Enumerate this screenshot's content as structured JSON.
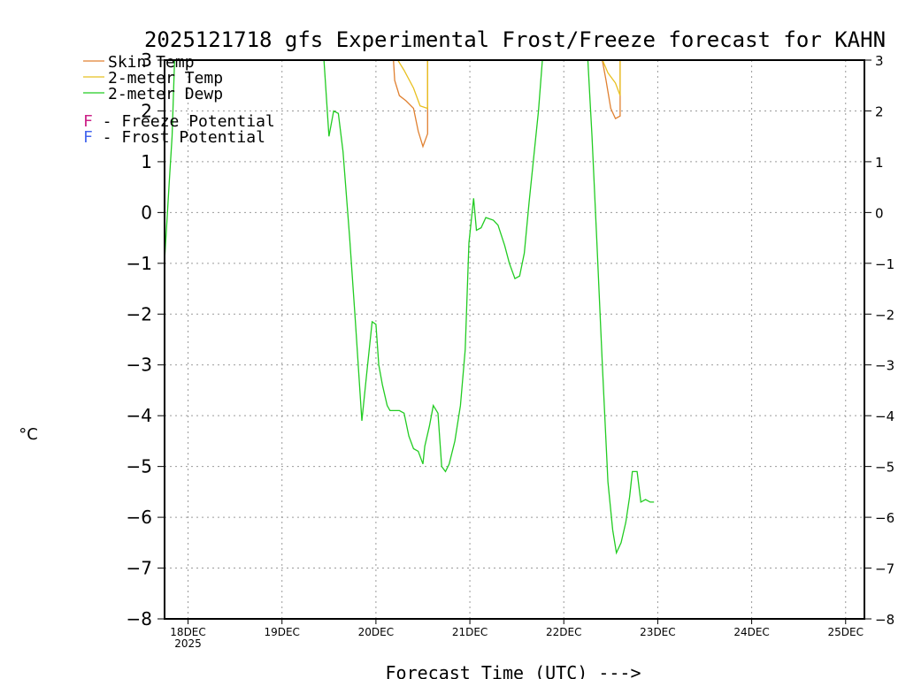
{
  "chart_data": {
    "type": "line",
    "title": "2025121718 gfs Experimental Frost/Freeze forecast for KAHN",
    "xlabel": "Forecast Time (UTC) --->",
    "ylabel": "°C",
    "ylim": [
      -8,
      3
    ],
    "xlim": [
      17.75,
      25.2
    ],
    "yticks": [
      -8,
      -7,
      -6,
      -5,
      -4,
      -3,
      -2,
      -1,
      0,
      1,
      2,
      3
    ],
    "ytick_labels": [
      "−8",
      "−7",
      "−6",
      "−5",
      "−4",
      "−3",
      "−2",
      "−1",
      "0",
      "1",
      "2",
      "3"
    ],
    "ytick_labels_right": [
      "−8",
      "−7",
      "−6",
      "−5",
      "−4",
      "−3",
      "−2",
      "−1",
      "0",
      "1",
      "2",
      "3"
    ],
    "xticks": [
      18,
      19,
      20,
      21,
      22,
      23,
      24,
      25
    ],
    "xtick_labels": [
      "18DEC",
      "19DEC",
      "20DEC",
      "21DEC",
      "22DEC",
      "23DEC",
      "24DEC",
      "25DEC"
    ],
    "xtick_sublabel": "2025",
    "grid": true,
    "legend": {
      "placement": "top-left",
      "entries": [
        "Skin Temp",
        "2-meter Temp",
        "2-meter Dewp"
      ],
      "notes": [
        {
          "letter": "F",
          "text": " - Freeze Potential",
          "color": "#cc2288"
        },
        {
          "letter": "F",
          "text": " - Frost Potential",
          "color": "#4466ee"
        }
      ]
    },
    "series": [
      {
        "name": "Skin Temp",
        "color": "#e08030",
        "points": [
          [
            20.18,
            3.2
          ],
          [
            20.2,
            2.6
          ],
          [
            20.25,
            2.3
          ],
          [
            20.32,
            2.2
          ],
          [
            20.4,
            2.05
          ],
          [
            20.45,
            1.6
          ],
          [
            20.5,
            1.3
          ],
          [
            20.55,
            1.55
          ],
          [
            20.55,
            2.25
          ],
          [
            20.55,
            3.2
          ],
          null,
          [
            22.39,
            3.2
          ],
          [
            22.45,
            2.6
          ],
          [
            22.5,
            2.05
          ],
          [
            22.55,
            1.85
          ],
          [
            22.6,
            1.9
          ],
          [
            22.6,
            2.3
          ],
          [
            22.6,
            3.2
          ]
        ]
      },
      {
        "name": "2-meter Temp",
        "color": "#e8c020",
        "points": [
          [
            20.2,
            3.1
          ],
          [
            20.3,
            2.8
          ],
          [
            20.4,
            2.45
          ],
          [
            20.47,
            2.1
          ],
          [
            20.55,
            2.05
          ],
          [
            20.55,
            3.2
          ],
          null,
          [
            22.39,
            3.1
          ],
          [
            22.47,
            2.75
          ],
          [
            22.55,
            2.55
          ],
          [
            22.6,
            2.3
          ],
          [
            22.6,
            3.2
          ]
        ]
      },
      {
        "name": "2-meter Dewp",
        "color": "#22cc22",
        "points": [
          [
            17.75,
            -0.95
          ],
          [
            17.8,
            0.6
          ],
          [
            17.83,
            1.5
          ],
          [
            17.86,
            3.2
          ],
          null,
          [
            19.44,
            3.2
          ],
          [
            19.5,
            1.5
          ],
          [
            19.55,
            2.0
          ],
          [
            19.6,
            1.95
          ],
          [
            19.65,
            1.2
          ],
          [
            19.72,
            -0.5
          ],
          [
            19.78,
            -2.1
          ],
          [
            19.85,
            -4.1
          ],
          [
            19.9,
            -3.2
          ],
          [
            19.96,
            -2.15
          ],
          [
            20.0,
            -2.2
          ],
          [
            20.03,
            -3.0
          ],
          [
            20.07,
            -3.4
          ],
          [
            20.12,
            -3.8
          ],
          [
            20.15,
            -3.9
          ],
          [
            20.25,
            -3.9
          ],
          [
            20.3,
            -3.95
          ],
          [
            20.35,
            -4.4
          ],
          [
            20.4,
            -4.65
          ],
          [
            20.45,
            -4.7
          ],
          [
            20.5,
            -4.95
          ],
          [
            20.52,
            -4.6
          ],
          [
            20.57,
            -4.2
          ],
          [
            20.61,
            -3.8
          ],
          [
            20.66,
            -3.95
          ],
          [
            20.7,
            -5.0
          ],
          [
            20.74,
            -5.1
          ],
          [
            20.78,
            -4.95
          ],
          [
            20.84,
            -4.5
          ],
          [
            20.9,
            -3.8
          ],
          [
            20.95,
            -2.7
          ],
          [
            20.99,
            -0.6
          ],
          [
            21.04,
            0.28
          ],
          [
            21.07,
            -0.35
          ],
          [
            21.12,
            -0.3
          ],
          [
            21.17,
            -0.1
          ],
          [
            21.25,
            -0.15
          ],
          [
            21.3,
            -0.25
          ],
          [
            21.37,
            -0.65
          ],
          [
            21.42,
            -1.0
          ],
          [
            21.48,
            -1.3
          ],
          [
            21.53,
            -1.25
          ],
          [
            21.58,
            -0.8
          ],
          [
            21.63,
            0.2
          ],
          [
            21.68,
            1.1
          ],
          [
            21.73,
            2.0
          ],
          [
            21.78,
            3.2
          ],
          null,
          [
            22.25,
            3.2
          ],
          [
            22.3,
            1.5
          ],
          [
            22.35,
            -0.5
          ],
          [
            22.41,
            -3.0
          ],
          [
            22.47,
            -5.3
          ],
          [
            22.52,
            -6.25
          ],
          [
            22.56,
            -6.7
          ],
          [
            22.61,
            -6.5
          ],
          [
            22.66,
            -6.1
          ],
          [
            22.7,
            -5.6
          ],
          [
            22.73,
            -5.1
          ],
          [
            22.78,
            -5.1
          ],
          [
            22.82,
            -5.7
          ],
          [
            22.87,
            -5.65
          ],
          [
            22.92,
            -5.7
          ],
          [
            22.96,
            -5.7
          ]
        ]
      }
    ]
  }
}
